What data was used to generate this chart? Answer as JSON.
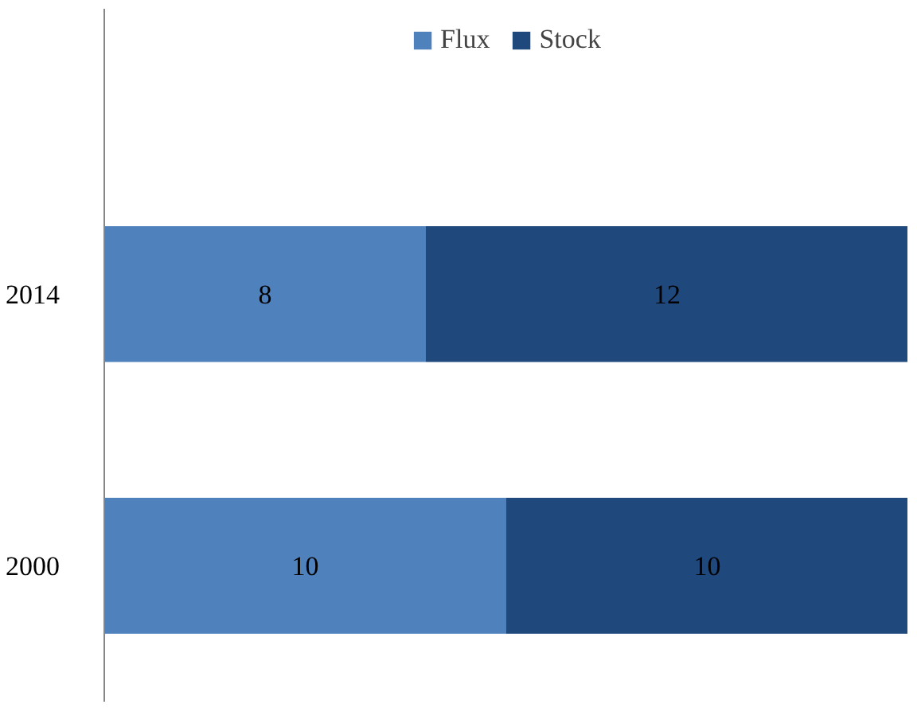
{
  "chart_data": {
    "type": "bar",
    "orientation": "horizontal",
    "stacked": true,
    "categories": [
      "2014",
      "2000"
    ],
    "series": [
      {
        "name": "Flux",
        "color": "#4f81bd",
        "values": [
          8,
          10
        ]
      },
      {
        "name": "Stock",
        "color": "#1f497d",
        "values": [
          12,
          10
        ]
      }
    ],
    "data_labels": true,
    "legend": "top",
    "grid": false
  }
}
